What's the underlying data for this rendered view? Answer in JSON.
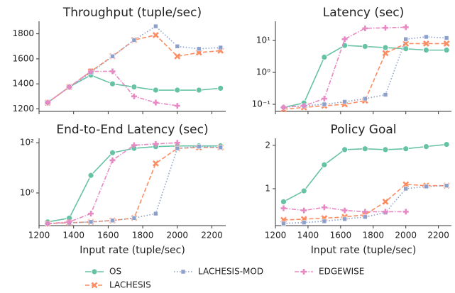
{
  "chart_data": [
    {
      "type": "line",
      "title": "Throughput (tuple/sec)",
      "legend": "below",
      "x": [
        1250,
        1375,
        1500,
        1625,
        1750,
        1875,
        2000,
        2125,
        2250
      ],
      "xlim": [
        1200,
        2280
      ],
      "xticks": [
        1200,
        1400,
        1600,
        1800,
        2000,
        2200
      ],
      "ylim": [
        1180,
        1900
      ],
      "yticks": [
        1200,
        1400,
        1600,
        1800
      ],
      "log": false,
      "series": [
        {
          "name": "OS",
          "color": "#66c2a5",
          "marker": "circle",
          "linestyle": "solid",
          "values": [
            1250,
            1375,
            1470,
            1400,
            1375,
            1350,
            1350,
            1350,
            1365
          ]
        },
        {
          "name": "LACHESIS",
          "color": "#fc8d62",
          "marker": "x",
          "linestyle": "dashed",
          "values": [
            1250,
            1375,
            1500,
            1620,
            1750,
            1790,
            1620,
            1650,
            1665
          ]
        },
        {
          "name": "LACHESIS-MOD",
          "color": "#8da0cb",
          "marker": "square",
          "linestyle": "dotted",
          "values": [
            1250,
            1375,
            1490,
            1620,
            1750,
            1860,
            1700,
            1680,
            1690
          ]
        },
        {
          "name": "EDGEWISE",
          "color": "#e78ac3",
          "marker": "plus",
          "linestyle": "dashdot",
          "values": [
            1250,
            1375,
            1500,
            1500,
            1300,
            1250,
            1225,
            null,
            null
          ]
        }
      ]
    },
    {
      "type": "line",
      "title": "Latency (sec)",
      "x": [
        1250,
        1375,
        1500,
        1625,
        1750,
        1875,
        2000,
        2125,
        2250
      ],
      "xlim": [
        1200,
        2280
      ],
      "xticks": [
        1200,
        1400,
        1600,
        1800,
        2000,
        2200
      ],
      "ylim": [
        0.06,
        40
      ],
      "log": true,
      "yticks": [
        {
          "value": 0.1,
          "label": "10⁻¹"
        },
        {
          "value": 1,
          "label": "10⁰"
        },
        {
          "value": 10,
          "label": "10¹"
        }
      ],
      "series": [
        {
          "name": "OS",
          "color": "#66c2a5",
          "marker": "circle",
          "linestyle": "solid",
          "values": [
            0.08,
            0.11,
            3,
            7,
            6.5,
            6,
            5.5,
            5,
            5
          ]
        },
        {
          "name": "LACHESIS",
          "color": "#fc8d62",
          "marker": "x",
          "linestyle": "dashed",
          "values": [
            0.07,
            0.08,
            0.09,
            0.1,
            0.13,
            4,
            8,
            8,
            8
          ]
        },
        {
          "name": "LACHESIS-MOD",
          "color": "#8da0cb",
          "marker": "square",
          "linestyle": "dotted",
          "values": [
            0.08,
            0.09,
            0.1,
            0.12,
            0.15,
            0.2,
            11,
            13,
            12
          ]
        },
        {
          "name": "EDGEWISE",
          "color": "#e78ac3",
          "marker": "plus",
          "linestyle": "dashdot",
          "values": [
            0.08,
            0.09,
            0.15,
            11,
            24,
            25,
            26,
            null,
            null
          ]
        }
      ]
    },
    {
      "type": "line",
      "title": "End-to-End Latency (sec)",
      "xlabel": "Input rate (tuple/sec)",
      "x": [
        1250,
        1375,
        1500,
        1625,
        1750,
        1875,
        2000,
        2125,
        2250
      ],
      "xlim": [
        1200,
        2280
      ],
      "xticks": [
        1200,
        1400,
        1600,
        1800,
        2000,
        2200
      ],
      "ylim": [
        0.05,
        150
      ],
      "log": true,
      "yticks": [
        {
          "value": 1,
          "label": "10⁰"
        },
        {
          "value": 100,
          "label": "10²"
        }
      ],
      "series": [
        {
          "name": "OS",
          "color": "#66c2a5",
          "marker": "circle",
          "linestyle": "solid",
          "values": [
            0.07,
            0.1,
            5,
            40,
            60,
            70,
            75,
            75,
            75
          ]
        },
        {
          "name": "LACHESIS",
          "color": "#fc8d62",
          "marker": "x",
          "linestyle": "dashed",
          "values": [
            0.06,
            0.065,
            0.07,
            0.08,
            0.1,
            15,
            60,
            65,
            65
          ]
        },
        {
          "name": "LACHESIS-MOD",
          "color": "#8da0cb",
          "marker": "square",
          "linestyle": "dotted",
          "values": [
            0.06,
            0.065,
            0.07,
            0.08,
            0.1,
            0.15,
            60,
            70,
            65
          ]
        },
        {
          "name": "EDGEWISE",
          "color": "#e78ac3",
          "marker": "plus",
          "linestyle": "dashdot",
          "values": [
            0.06,
            0.07,
            0.15,
            20,
            80,
            90,
            100,
            null,
            null
          ]
        }
      ]
    },
    {
      "type": "line",
      "title": "Policy Goal",
      "xlabel": "Input rate (tuple/sec)",
      "x": [
        1250,
        1375,
        1500,
        1625,
        1750,
        1875,
        2000,
        2125,
        2250
      ],
      "xlim": [
        1200,
        2280
      ],
      "xticks": [
        1200,
        1400,
        1600,
        1800,
        2000,
        2200
      ],
      "ylim": [
        0.15,
        2.16
      ],
      "yticks": [
        1,
        2
      ],
      "log": false,
      "series": [
        {
          "name": "OS",
          "color": "#66c2a5",
          "marker": "circle",
          "linestyle": "solid",
          "values": [
            0.7,
            0.95,
            1.55,
            1.9,
            1.92,
            1.9,
            1.92,
            1.97,
            2.02
          ]
        },
        {
          "name": "LACHESIS",
          "color": "#fc8d62",
          "marker": "x",
          "linestyle": "dashed",
          "values": [
            0.28,
            0.3,
            0.32,
            0.35,
            0.4,
            0.7,
            1.1,
            1.07,
            1.07
          ]
        },
        {
          "name": "LACHESIS-MOD",
          "color": "#8da0cb",
          "marker": "square",
          "linestyle": "dotted",
          "values": [
            0.2,
            0.22,
            0.25,
            0.3,
            0.35,
            0.45,
            1.0,
            1.05,
            1.07
          ]
        },
        {
          "name": "EDGEWISE",
          "color": "#e78ac3",
          "marker": "plus",
          "linestyle": "dashdot",
          "values": [
            0.55,
            0.5,
            0.57,
            0.5,
            0.47,
            0.47,
            0.47,
            null,
            null
          ]
        }
      ]
    }
  ]
}
